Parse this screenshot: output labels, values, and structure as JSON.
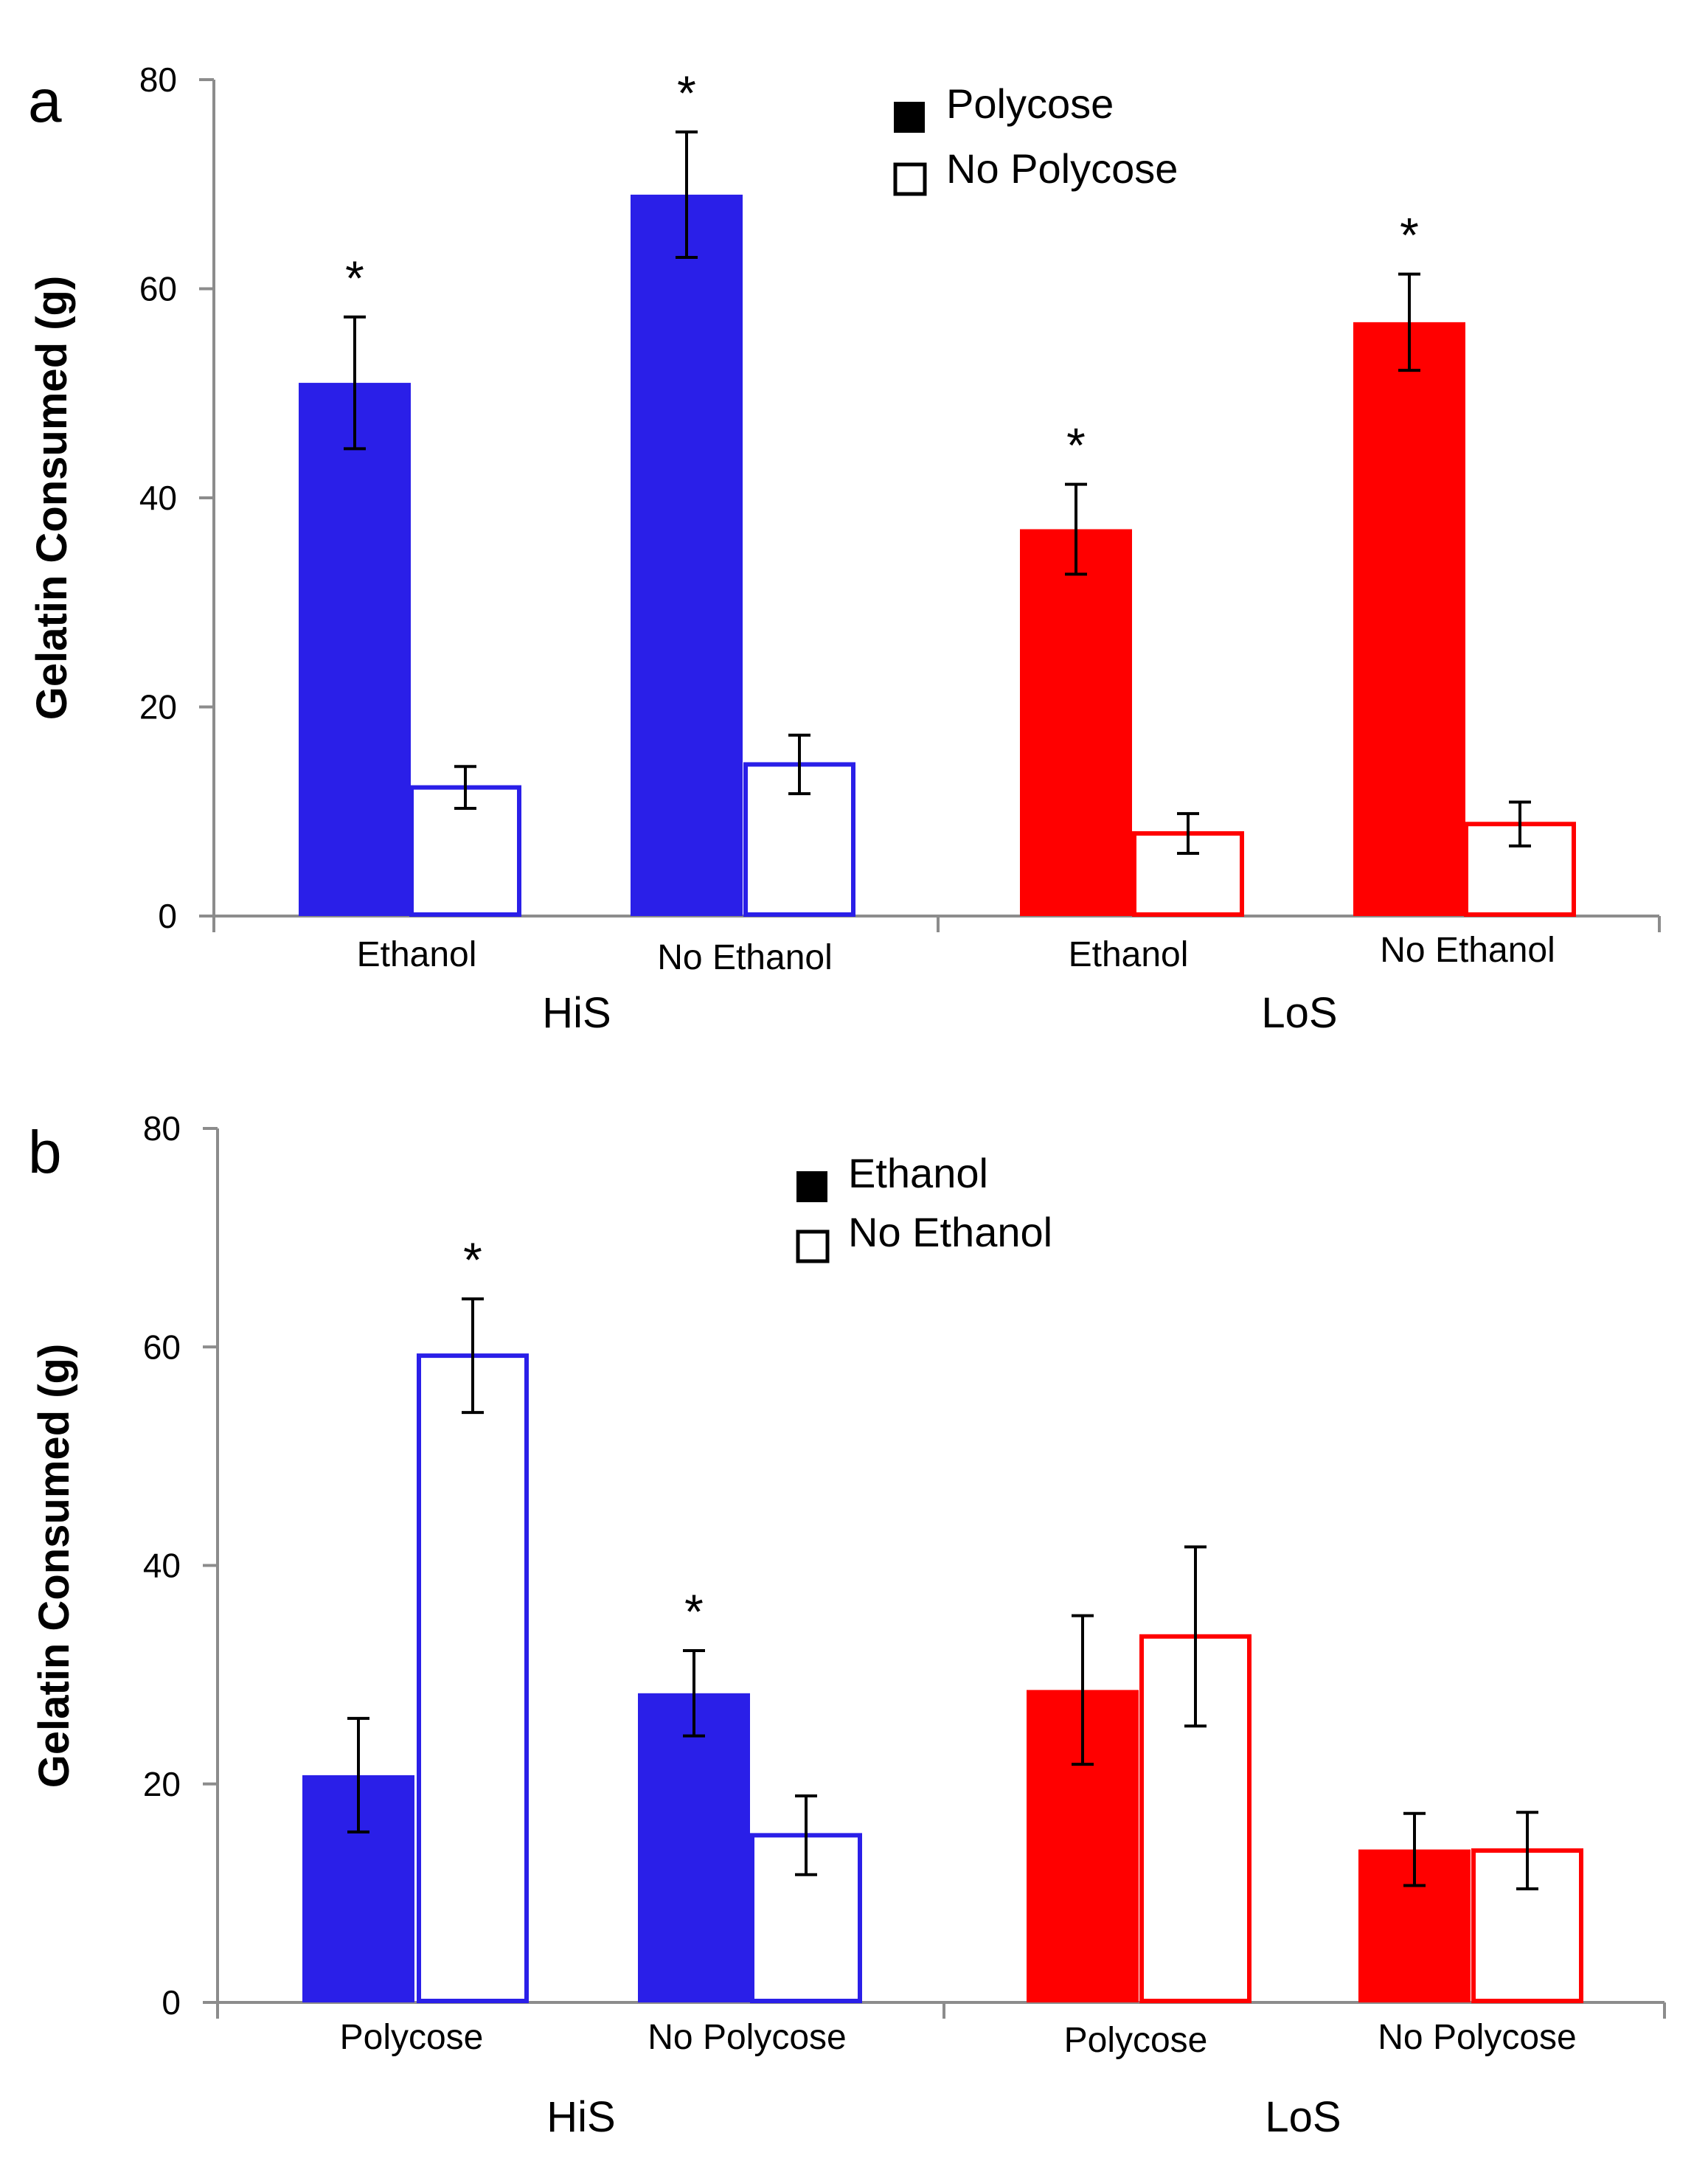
{
  "colors": {
    "his": "#2a1fe8",
    "los": "#ff0000",
    "axis": "#8c8c8c",
    "error": "#000000"
  },
  "chart_data": [
    {
      "type": "bar",
      "panel_label": "a",
      "ylabel": "Gelatin Consumed (g)",
      "ylim": [
        0,
        80
      ],
      "yticks": [
        "0",
        "20",
        "40",
        "60",
        "80"
      ],
      "groups": [
        "HiS",
        "LoS"
      ],
      "categories": [
        "Ethanol",
        "No Ethanol",
        "Ethanol",
        "No Ethanol"
      ],
      "legend": [
        {
          "label": "Polycose",
          "fill": "solid"
        },
        {
          "label": "No Polycose",
          "fill": "open"
        }
      ],
      "significance_marker": "*",
      "series": [
        {
          "name": "Polycose",
          "fill": "solid",
          "values": [
            51,
            69,
            37,
            56.8
          ],
          "errors": [
            6.3,
            6.0,
            4.3,
            4.6
          ],
          "significant": [
            true,
            true,
            true,
            true
          ]
        },
        {
          "name": "No Polycose",
          "fill": "open",
          "values": [
            12.3,
            14.5,
            7.9,
            8.8
          ],
          "errors": [
            2.0,
            2.8,
            1.9,
            2.1
          ],
          "significant": [
            false,
            false,
            false,
            false
          ]
        }
      ]
    },
    {
      "type": "bar",
      "panel_label": "b",
      "ylabel": "Gelatin Consumed (g)",
      "ylim": [
        0,
        80
      ],
      "yticks": [
        "0",
        "20",
        "40",
        "60",
        "80"
      ],
      "groups": [
        "HiS",
        "LoS"
      ],
      "categories": [
        "Polycose",
        "No Polycose",
        "Polycose",
        "No Polycose"
      ],
      "legend": [
        {
          "label": "Ethanol",
          "fill": "solid"
        },
        {
          "label": "No Ethanol",
          "fill": "open"
        }
      ],
      "significance_marker": "*",
      "series": [
        {
          "name": "Ethanol",
          "fill": "solid",
          "values": [
            20.8,
            28.3,
            28.6,
            14
          ],
          "errors": [
            5.2,
            3.9,
            6.8,
            3.3
          ],
          "significant": [
            false,
            true,
            false,
            false
          ]
        },
        {
          "name": "No Ethanol",
          "fill": "open",
          "values": [
            59.2,
            15.3,
            33.5,
            13.9
          ],
          "errors": [
            5.2,
            3.6,
            8.2,
            3.5
          ],
          "significant": [
            true,
            false,
            false,
            false
          ]
        }
      ]
    }
  ]
}
